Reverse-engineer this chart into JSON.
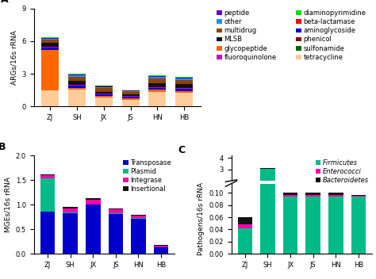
{
  "categories": [
    "ZJ",
    "SH",
    "JX",
    "JS",
    "HN",
    "HB"
  ],
  "A_data": {
    "tetracycline": [
      1.5,
      1.55,
      0.8,
      0.65,
      1.35,
      1.3
    ],
    "glycopeptide": [
      3.7,
      0.18,
      0.15,
      0.12,
      0.18,
      0.15
    ],
    "aminoglycoside": [
      0.22,
      0.2,
      0.18,
      0.16,
      0.2,
      0.2
    ],
    "fluoroquinolone": [
      0.05,
      0.05,
      0.04,
      0.03,
      0.06,
      0.05
    ],
    "MLSB": [
      0.35,
      0.35,
      0.18,
      0.15,
      0.38,
      0.35
    ],
    "multidrug": [
      0.28,
      0.42,
      0.32,
      0.22,
      0.42,
      0.4
    ],
    "other": [
      0.08,
      0.1,
      0.08,
      0.06,
      0.1,
      0.1
    ],
    "peptide": [
      0.08,
      0.08,
      0.06,
      0.05,
      0.08,
      0.08
    ],
    "phenicol": [
      0.02,
      0.02,
      0.02,
      0.02,
      0.02,
      0.02
    ],
    "beta_lactamase": [
      0.02,
      0.02,
      0.02,
      0.02,
      0.02,
      0.02
    ],
    "diaminopyrimidine": [
      0.03,
      0.03,
      0.03,
      0.02,
      0.03,
      0.03
    ],
    "sulfonamide": [
      0.02,
      0.03,
      0.03,
      0.02,
      0.03,
      0.03
    ]
  },
  "A_colors": {
    "tetracycline": "#ffcc99",
    "glycopeptide": "#ff6600",
    "aminoglycoside": "#0000cd",
    "fluoroquinolone": "#cc00cc",
    "MLSB": "#111111",
    "multidrug": "#8b4500",
    "other": "#1e90ff",
    "peptide": "#6600cc",
    "phenicol": "#8b0000",
    "beta_lactamase": "#ff0000",
    "diaminopyrimidine": "#00dd00",
    "sulfonamide": "#006600"
  },
  "A_order": [
    "tetracycline",
    "glycopeptide",
    "aminoglycoside",
    "fluoroquinolone",
    "MLSB",
    "multidrug",
    "other",
    "peptide",
    "phenicol",
    "beta_lactamase",
    "diaminopyrimidine",
    "sulfonamide"
  ],
  "A_legend_left_keys": [
    "peptide",
    "other",
    "multidrug",
    "MLSB",
    "glycopeptide",
    "fluoroquinolone"
  ],
  "A_legend_left_labels": [
    "peptide",
    "other",
    "multidrug",
    "MLSB",
    "glycopeptide",
    "fluoroquinolone"
  ],
  "A_legend_right_keys": [
    "diaminopyrimidine",
    "beta_lactamase",
    "aminoglycoside",
    "phenicol",
    "sulfonamide",
    "tetracycline"
  ],
  "A_legend_right_labels": [
    "diaminopyrimidine",
    "beta-lactamase",
    "aminoglycoside",
    "phenicol",
    "sulfonamide",
    "tetracycline"
  ],
  "A_ylabel": "ARGs/16s rRNA",
  "A_ylim": [
    0,
    9
  ],
  "A_yticks": [
    0,
    3,
    6,
    9
  ],
  "B_data": {
    "Insertional": [
      0.02,
      0.02,
      0.02,
      0.02,
      0.02,
      0.02
    ],
    "Integrase": [
      0.06,
      0.09,
      0.1,
      0.08,
      0.05,
      0.02
    ],
    "Plasmid": [
      0.68,
      0.01,
      0.01,
      0.01,
      0.01,
      0.01
    ],
    "Transposase": [
      0.86,
      0.83,
      1.0,
      0.82,
      0.72,
      0.13
    ]
  },
  "B_colors": {
    "Insertional": "#111111",
    "Integrase": "#ff00aa",
    "Plasmid": "#00bb88",
    "Transposase": "#0000cc"
  },
  "B_order": [
    "Transposase",
    "Plasmid",
    "Integrase",
    "Insertional"
  ],
  "B_ylabel": "MGEs/16s rRNA",
  "B_ylim": [
    0,
    2.0
  ],
  "B_yticks": [
    0.0,
    0.5,
    1.0,
    1.5,
    2.0
  ],
  "C_data": {
    "Bacteroidetes": [
      0.012,
      0.028,
      0.003,
      0.003,
      0.003,
      0.001
    ],
    "Enterococci": [
      0.006,
      0.015,
      0.003,
      0.003,
      0.003,
      0.001
    ],
    "Firmicutes": [
      0.042,
      3.06,
      0.094,
      0.094,
      0.094,
      0.094
    ]
  },
  "C_colors": {
    "Bacteroidetes": "#111111",
    "Enterococci": "#ff00aa",
    "Firmicutes": "#00bb88"
  },
  "C_order": [
    "Firmicutes",
    "Enterococci",
    "Bacteroidetes"
  ],
  "C_ylabel": "Pathogens/16s rRNA",
  "figure_label_fontsize": 9,
  "legend_fontsize": 6.0,
  "tick_fontsize": 6,
  "axis_label_fontsize": 6.5
}
